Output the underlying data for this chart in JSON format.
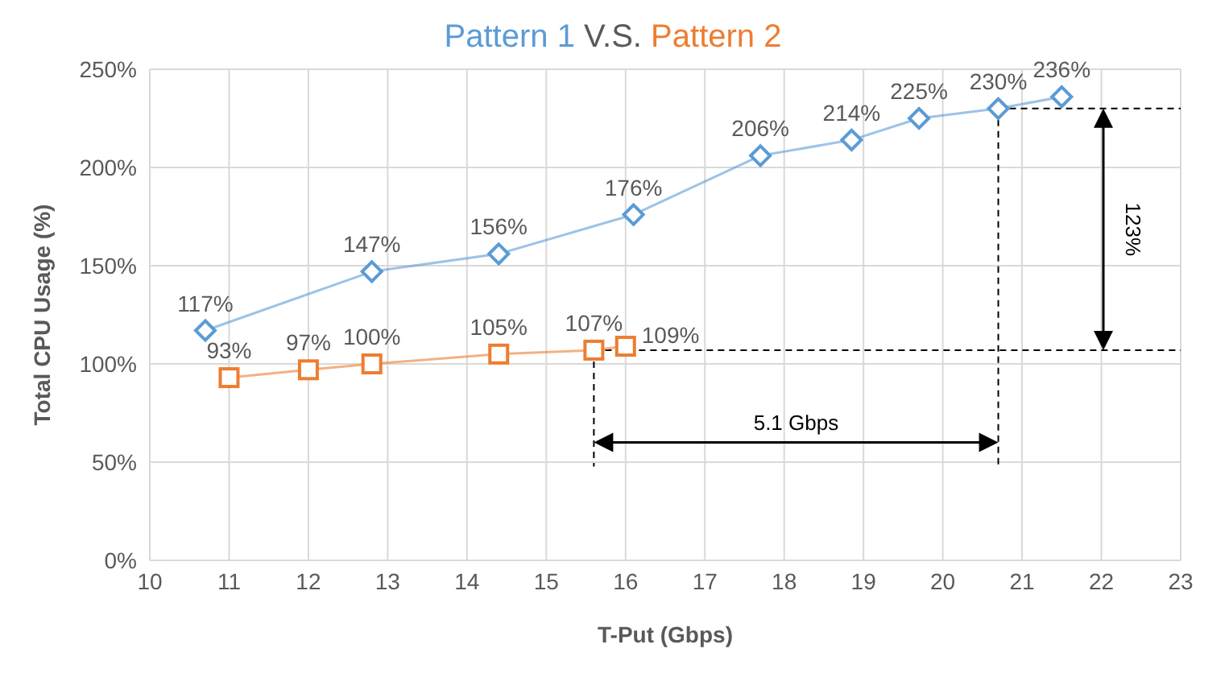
{
  "chart_data": {
    "type": "line",
    "title": "V.S.",
    "xlabel": "T-Put (Gbps)",
    "ylabel": "Total CPU Usage (%)",
    "xlim": [
      10,
      23
    ],
    "xticks": [
      10,
      11,
      12,
      13,
      14,
      15,
      16,
      17,
      18,
      19,
      20,
      21,
      22,
      23
    ],
    "ylim": [
      0,
      250
    ],
    "yticks": [
      {
        "value": 0,
        "label": "0%"
      },
      {
        "value": 50,
        "label": "50%"
      },
      {
        "value": 100,
        "label": "100%"
      },
      {
        "value": 150,
        "label": "150%"
      },
      {
        "value": 200,
        "label": "200%"
      },
      {
        "value": 250,
        "label": "250%"
      }
    ],
    "grid": true,
    "legend": "top",
    "data_labels": true,
    "annotations": [
      "5.1 Gbps",
      "123%"
    ],
    "series": [
      {
        "name": "Pattern 1",
        "color": "#5b9bd5",
        "marker": "diamond",
        "x": [
          10.7,
          12.8,
          14.4,
          16.1,
          17.7,
          18.85,
          19.7,
          20.7,
          21.5
        ],
        "values": [
          117,
          147,
          156,
          176,
          206,
          214,
          225,
          230,
          236
        ],
        "value_labels": [
          "117%",
          "147%",
          "156%",
          "176%",
          "206%",
          "214%",
          "225%",
          "230%",
          "236%"
        ]
      },
      {
        "name": "Pattern 2",
        "color": "#ed7d31",
        "marker": "square",
        "x": [
          11.0,
          12.0,
          12.8,
          14.4,
          15.6,
          16.0
        ],
        "values": [
          93,
          97,
          100,
          105,
          107,
          109
        ],
        "value_labels": [
          "93%",
          "97%",
          "100%",
          "105%",
          "107%",
          "109%"
        ]
      }
    ]
  }
}
